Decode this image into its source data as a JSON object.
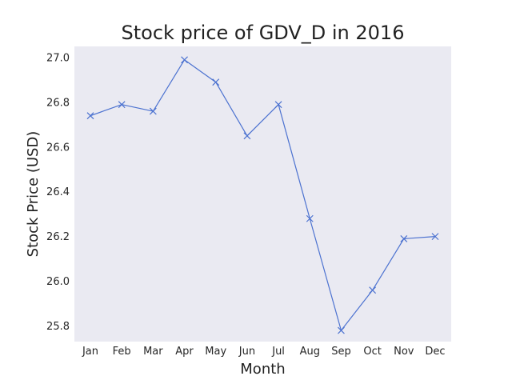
{
  "chart_data": {
    "type": "line",
    "title": "Stock price of GDV_D in 2016",
    "xlabel": "Month",
    "ylabel": "Stock Price (USD)",
    "categories": [
      "Jan",
      "Feb",
      "Mar",
      "Apr",
      "May",
      "Jun",
      "Jul",
      "Aug",
      "Sep",
      "Oct",
      "Nov",
      "Dec"
    ],
    "series": [
      {
        "values": [
          26.74,
          26.79,
          26.76,
          26.99,
          26.89,
          26.65,
          26.79,
          26.28,
          25.78,
          25.96,
          26.19,
          26.2
        ]
      }
    ],
    "ylim": [
      25.73,
      27.05
    ],
    "yticks": [
      25.8,
      26.0,
      26.2,
      26.4,
      26.6,
      26.8,
      27.0
    ],
    "ytick_labels": [
      "25.8",
      "26.0",
      "26.2",
      "26.4",
      "26.6",
      "26.8",
      "27.0"
    ],
    "grid": false,
    "marker": "x",
    "colors": {
      "line": "#4c72d0",
      "plot_background": "#eaeaf2",
      "page_background": "#ffffff",
      "text": "#222222"
    }
  }
}
